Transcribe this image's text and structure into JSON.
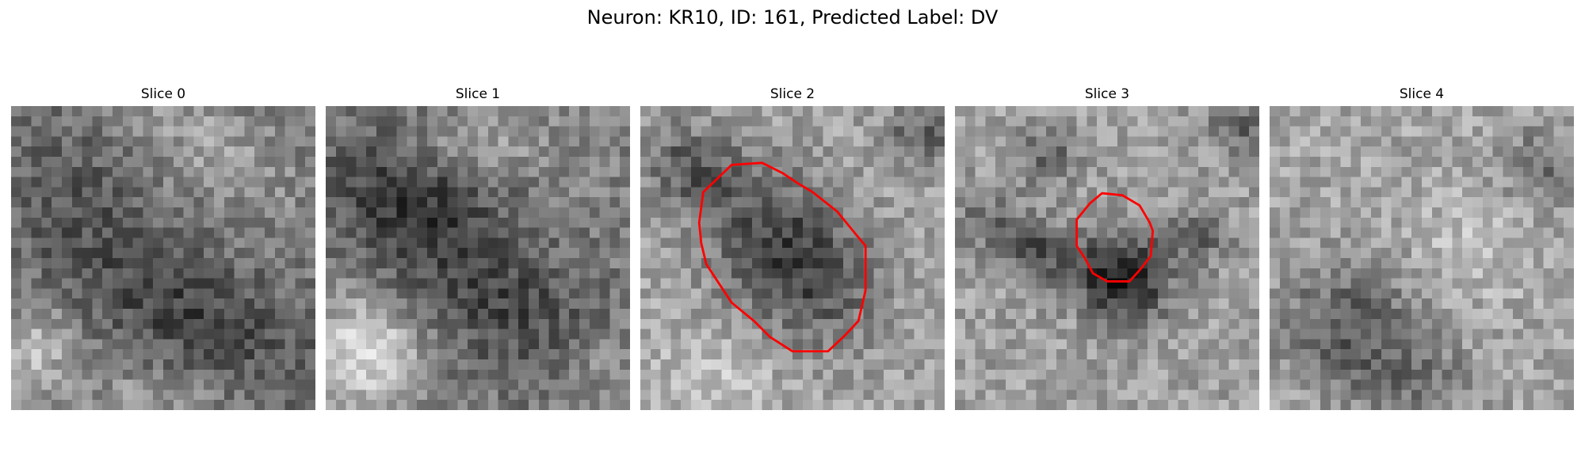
{
  "figure": {
    "title": "Neuron: KR10, ID: 161, Predicted Label: DV"
  },
  "colors": {
    "background": "#ffffff",
    "outline": "#ff0000",
    "image_colormap": "grayscale"
  },
  "panels": [
    {
      "title": "Slice 0",
      "outline_shown": false
    },
    {
      "title": "Slice 1",
      "outline_shown": false
    },
    {
      "title": "Slice 2",
      "outline_shown": true
    },
    {
      "title": "Slice 3",
      "outline_shown": true
    },
    {
      "title": "Slice 4",
      "outline_shown": false
    }
  ]
}
